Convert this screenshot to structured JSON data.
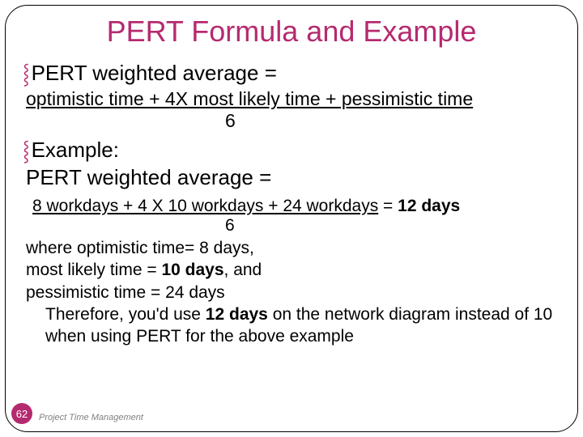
{
  "colors": {
    "accent": "#b52a6f",
    "text": "#000000",
    "footer": "#808080",
    "background": "#ffffff"
  },
  "title": "PERT Formula and Example",
  "bullet_glyph": "⸾",
  "line1": "PERT weighted average =",
  "formula_numerator": "optimistic time + 4X most likely time + pessimistic time",
  "formula_denominator": "6",
  "example_label": "Example:",
  "example_line2": "PERT weighted average =",
  "calc_underlined": "8 workdays + 4 X 10 workdays + 24 workdays",
  "calc_eq": " = ",
  "calc_result": "12 days",
  "calc_denominator": "6",
  "where1_a": "where optimistic time= 8 days,",
  "where2_a": "most likely time = ",
  "where2_b": "10 days",
  "where2_c": ", and",
  "where3_a": "pessimistic time = 24 days",
  "therefore_a": "Therefore, you'd use ",
  "therefore_b": "12 days",
  "therefore_c": " on the network diagram instead of 10 when using PERT for the above example",
  "page_number": "62",
  "footer": "Project Time Management"
}
